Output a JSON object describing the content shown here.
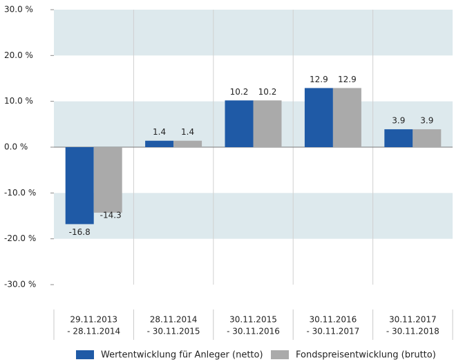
{
  "chart_data": {
    "type": "bar",
    "categories": [
      [
        "29.11.2013",
        "- 28.11.2014"
      ],
      [
        "28.11.2014",
        "- 30.11.2015"
      ],
      [
        "30.11.2015",
        "- 30.11.2016"
      ],
      [
        "30.11.2016",
        "- 30.11.2017"
      ],
      [
        "30.11.2017",
        "- 30.11.2018"
      ]
    ],
    "series": [
      {
        "name": "Wertentwicklung für Anleger (netto)",
        "color": "#1f5aa6",
        "values": [
          -16.8,
          1.4,
          10.2,
          12.9,
          3.9
        ]
      },
      {
        "name": "Fondspreisentwicklung (brutto)",
        "color": "#aaaaaa",
        "values": [
          -14.3,
          1.4,
          10.2,
          12.9,
          3.9
        ]
      }
    ],
    "ylim": [
      -30,
      30
    ],
    "yticks": [
      {
        "value": -30,
        "label": "-30.0 %"
      },
      {
        "value": -20,
        "label": "-20.0 %"
      },
      {
        "value": -10,
        "label": "-10.0 %"
      },
      {
        "value": 0,
        "label": "0.0 %"
      },
      {
        "value": 10,
        "label": "10.0 %"
      },
      {
        "value": 20,
        "label": "20.0 %"
      },
      {
        "value": 30,
        "label": "30.0 %"
      }
    ],
    "grid": true,
    "legend": "bottom"
  }
}
